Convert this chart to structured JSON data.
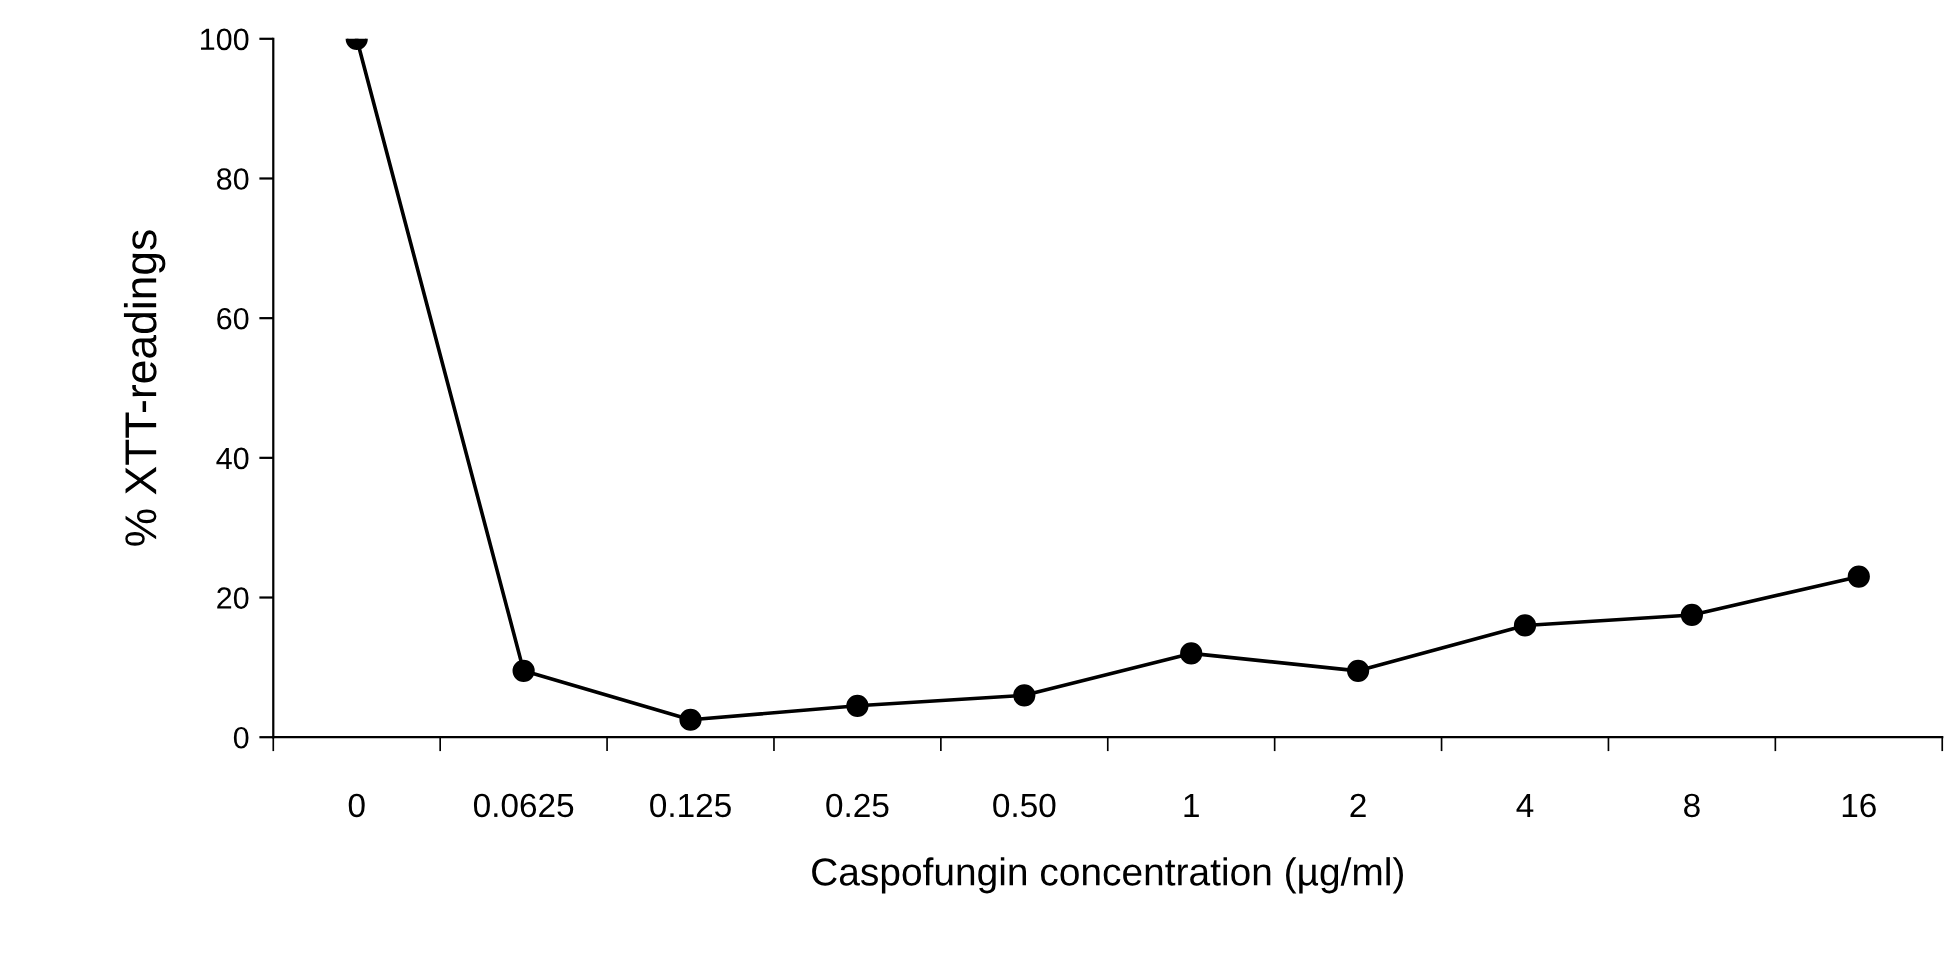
{
  "chart_data": {
    "type": "line",
    "xlabel": "Caspofungin concentration (µg/ml)",
    "ylabel": "% XTT-readings",
    "categories": [
      "0",
      "0.0625",
      "0.125",
      "0.25",
      "0.50",
      "1",
      "2",
      "4",
      "8",
      "16"
    ],
    "series": [
      {
        "color": "#000000",
        "values": [
          100,
          9.5,
          2.5,
          4.5,
          6,
          12,
          9.5,
          16,
          17.5,
          23
        ]
      }
    ],
    "ylim": [
      0,
      100
    ],
    "yticks": [
      0,
      20,
      40,
      60,
      80,
      100
    ],
    "marker": "circle",
    "line_style": "solid",
    "grid": false,
    "legend": false
  }
}
